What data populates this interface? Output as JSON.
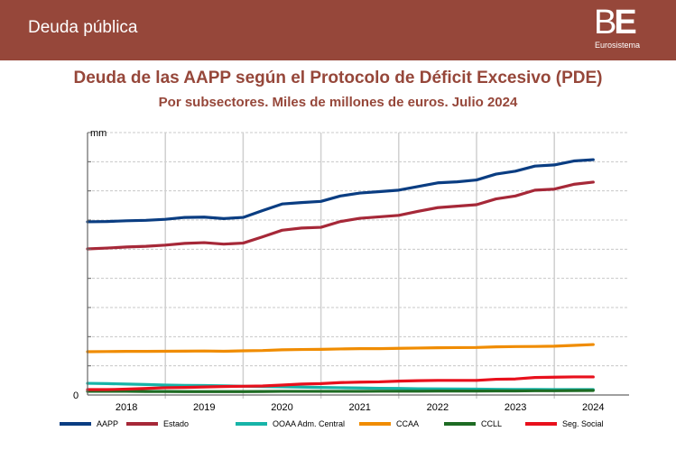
{
  "header": {
    "title": "Deuda pública",
    "logo_mark_b": "B",
    "logo_mark_e": "E",
    "logo_sub": "Eurosistema"
  },
  "chart_data": {
    "type": "line",
    "title": "Deuda de las AAPP según el Protocolo de Déficit Excesivo (PDE)",
    "subtitle": "Por subsectores. Miles de millones de euros. Julio 2024",
    "ylabel": "mm",
    "xlabel": "",
    "ylim": [
      0,
      1800
    ],
    "y_gridlines": [
      200,
      400,
      600,
      800,
      1000,
      1200,
      1400,
      1600,
      1800
    ],
    "y_tick_labels": [
      "0"
    ],
    "x_tick_labels": [
      "2018",
      "2019",
      "2020",
      "2021",
      "2022",
      "2023",
      "2024"
    ],
    "x_range": [
      2018.0,
      2024.96
    ],
    "grid": true,
    "legend_position": "bottom",
    "x": [
      2018.0,
      2018.25,
      2018.5,
      2018.75,
      2019.0,
      2019.25,
      2019.5,
      2019.75,
      2020.0,
      2020.25,
      2020.5,
      2020.75,
      2021.0,
      2021.25,
      2021.5,
      2021.75,
      2022.0,
      2022.25,
      2022.5,
      2022.75,
      2023.0,
      2023.25,
      2023.5,
      2023.75,
      2024.0,
      2024.25,
      2024.5
    ],
    "series": [
      {
        "name": "AAPP",
        "color": "#0a3d82",
        "values": [
          1188,
          1190,
          1195,
          1198,
          1205,
          1218,
          1220,
          1210,
          1218,
          1265,
          1310,
          1320,
          1328,
          1365,
          1385,
          1395,
          1405,
          1430,
          1455,
          1462,
          1475,
          1515,
          1535,
          1570,
          1578,
          1605,
          1614
        ]
      },
      {
        "name": "Estado",
        "color": "#a62838",
        "values": [
          1002,
          1008,
          1015,
          1020,
          1028,
          1040,
          1045,
          1035,
          1042,
          1085,
          1130,
          1145,
          1150,
          1190,
          1212,
          1222,
          1232,
          1260,
          1285,
          1295,
          1305,
          1345,
          1365,
          1405,
          1412,
          1445,
          1460
        ]
      },
      {
        "name": "OOAA Adm. Central",
        "color": "#17b4a8",
        "values": [
          80,
          78,
          75,
          72,
          68,
          66,
          65,
          63,
          60,
          58,
          56,
          54,
          52,
          50,
          48,
          46,
          45,
          43,
          42,
          41,
          40,
          39,
          38,
          38,
          37,
          37,
          37
        ]
      },
      {
        "name": "CCAA",
        "color": "#f08c00",
        "values": [
          297,
          298,
          299,
          299,
          300,
          301,
          302,
          300,
          303,
          305,
          310,
          312,
          313,
          316,
          318,
          318,
          320,
          322,
          324,
          325,
          326,
          330,
          332,
          333,
          335,
          340,
          346
        ]
      },
      {
        "name": "CCLL",
        "color": "#1e6b23",
        "values": [
          25,
          25,
          25,
          24,
          24,
          23,
          23,
          23,
          23,
          24,
          25,
          25,
          25,
          25,
          25,
          26,
          26,
          26,
          27,
          27,
          27,
          28,
          28,
          29,
          29,
          30,
          31
        ]
      },
      {
        "name": "Seg. Social",
        "color": "#e8101c",
        "values": [
          37,
          37,
          40,
          45,
          50,
          52,
          55,
          58,
          60,
          62,
          68,
          75,
          78,
          85,
          88,
          90,
          95,
          98,
          100,
          100,
          100,
          108,
          110,
          120,
          122,
          124,
          124
        ]
      }
    ]
  }
}
